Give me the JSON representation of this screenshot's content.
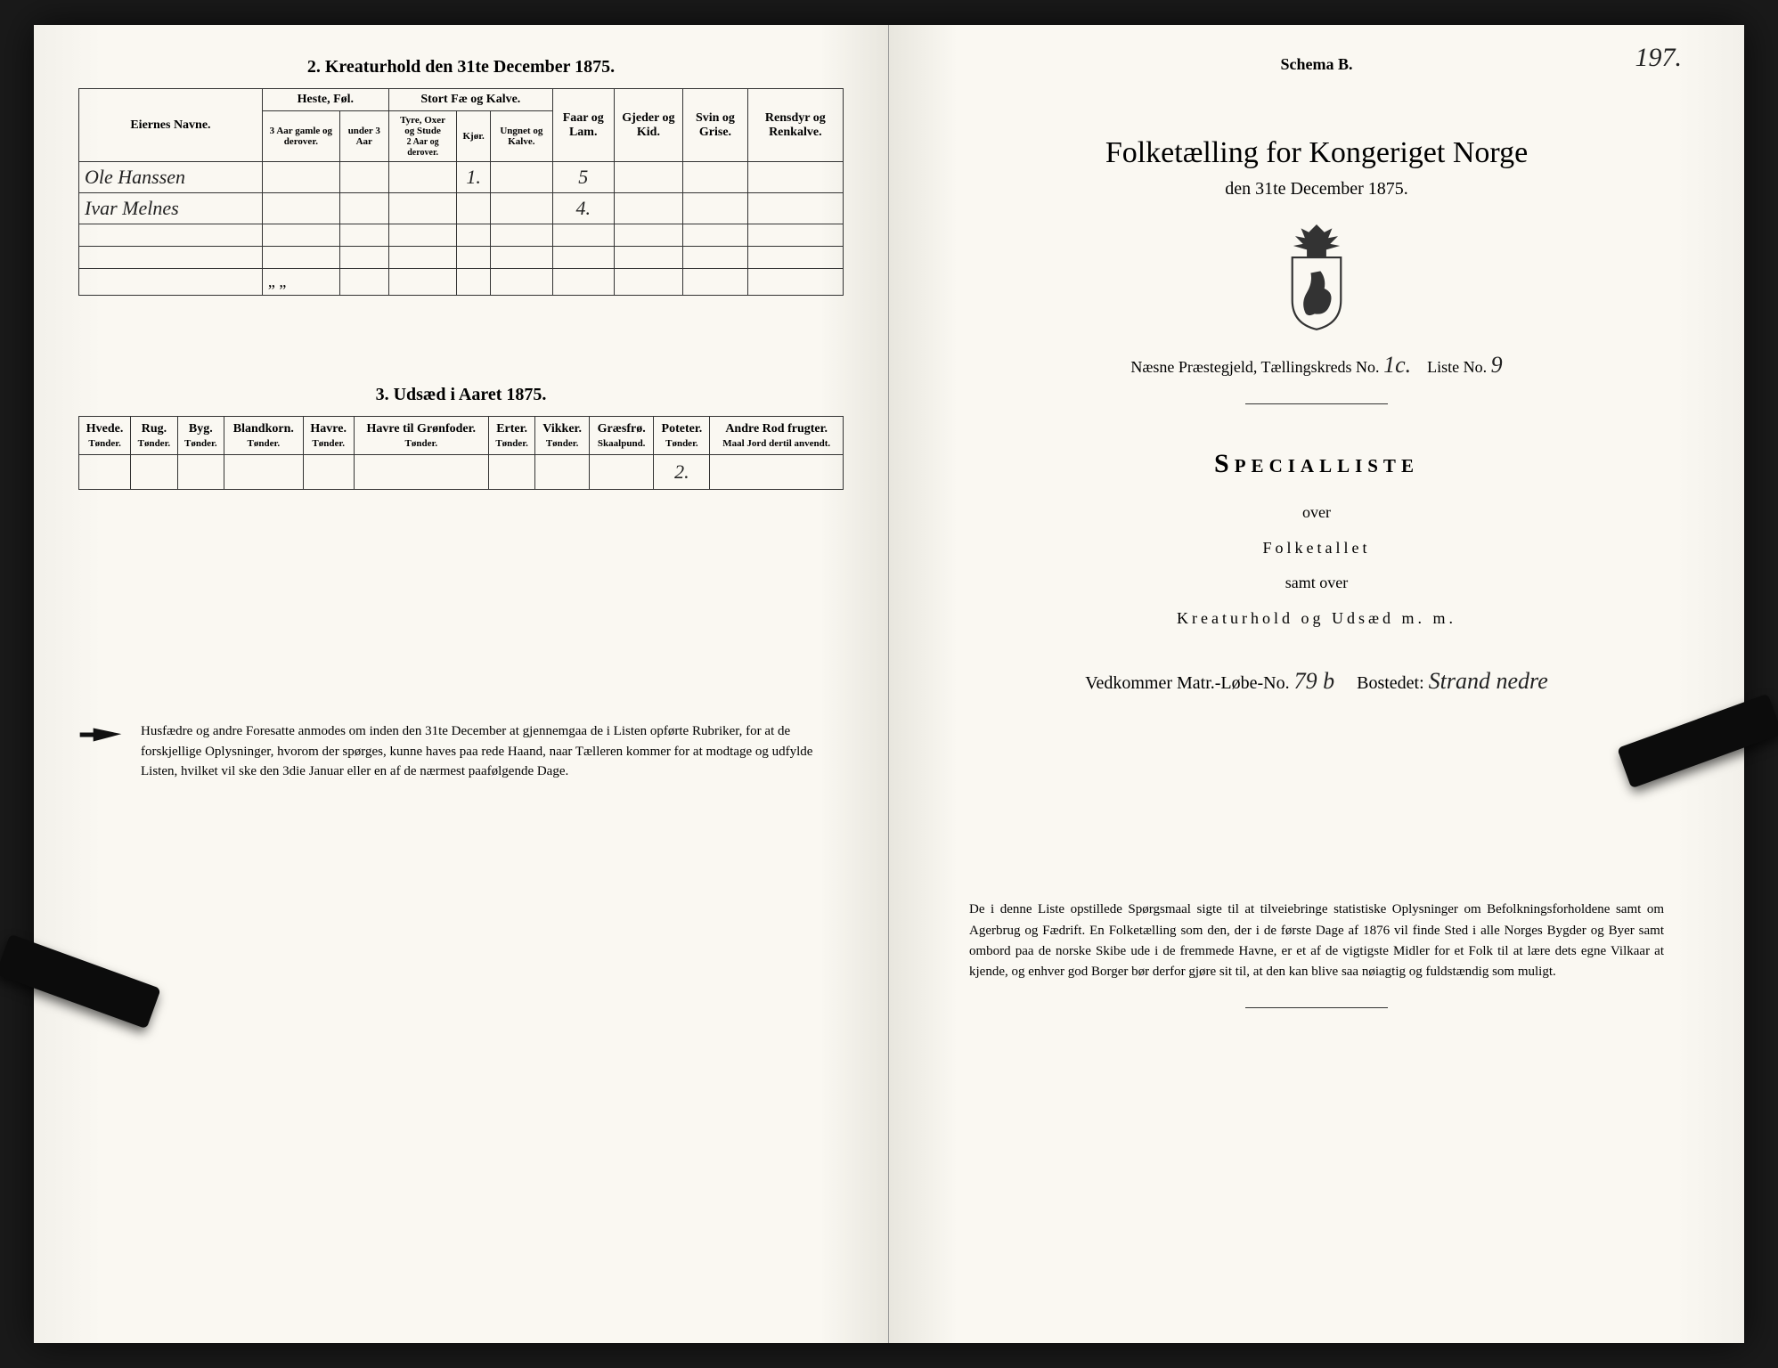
{
  "left": {
    "section2_title": "2.  Kreaturhold den 31te December 1875.",
    "cattle_headers": {
      "owner": "Eiernes Navne.",
      "horses": "Heste, Føl.",
      "horses_sub": [
        "3 Aar gamle og derover.",
        "under 3 Aar"
      ],
      "big": "Stort Fæ og Kalve.",
      "big_sub": [
        "Tyre, Oxer og Stude",
        "2 Aar og derover.",
        "Kjør.",
        "Ungnet og Kalve."
      ],
      "sheep": "Faar og Lam.",
      "goats": "Gjeder og Kid.",
      "pigs": "Svin og Grise.",
      "reindeer": "Rensdyr og Renkalve."
    },
    "cattle_rows": [
      {
        "name": "Ole Hanssen",
        "horses_a": "",
        "horses_b": "",
        "big_a": "",
        "kjor": "1.",
        "ung": "",
        "sheep": "5",
        "goats": "",
        "pigs": "",
        "reindeer": ""
      },
      {
        "name": "Ivar Melnes",
        "horses_a": "",
        "horses_b": "",
        "big_a": "",
        "kjor": "",
        "ung": "",
        "sheep": "4.",
        "goats": "",
        "pigs": "",
        "reindeer": ""
      }
    ],
    "section3_title": "3.  Udsæd i Aaret 1875.",
    "seed_headers": [
      "Hvede.",
      "Rug.",
      "Byg.",
      "Blandkorn.",
      "Havre.",
      "Havre til Grønfoder.",
      "Erter.",
      "Vikker.",
      "Græsfrø.",
      "Poteter.",
      "Andre Rod frugter."
    ],
    "seed_sub": [
      "Tønder.",
      "Tønder.",
      "Tønder.",
      "Tønder.",
      "Tønder.",
      "Tønder.",
      "Tønder.",
      "Tønder.",
      "Skaalpund.",
      "Tønder.",
      "Maal Jord dertil anvendt."
    ],
    "seed_values": [
      "",
      "",
      "",
      "",
      "",
      "",
      "",
      "",
      "",
      "2.",
      ""
    ],
    "footnote": "Husfædre og andre Foresatte anmodes om inden den 31te December at gjennemgaa de i Listen opførte Rubriker, for at de forskjellige Oplysninger, hvorom der spørges, kunne haves paa rede Haand, naar Tælleren kommer for at modtage og udfylde Listen, hvilket vil ske den 3die Januar eller en af de nærmest paafølgende Dage."
  },
  "right": {
    "schema": "Schema B.",
    "page_no": "197.",
    "title": "Folketælling for Kongeriget Norge",
    "date_line": "den 31te December 1875.",
    "parish_label": "Næsne Præstegjeld,  Tællingskreds No.",
    "kreds_no": "1c.",
    "liste_label": "Liste No.",
    "liste_no": "9",
    "special": "Specialliste",
    "over1": "over",
    "over2": "Folketallet",
    "over3": "samt over",
    "over4": "Kreaturhold og Udsæd m. m.",
    "matr_label": "Vedkommer Matr.-Løbe-No.",
    "matr_no": "79 b",
    "bosted_label": "Bostedet:",
    "bosted": "Strand nedre",
    "footnote": "De i denne Liste opstillede Spørgsmaal sigte til at tilveiebringe statistiske Oplysninger om Befolkningsforholdene samt om Agerbrug og Fædrift. En Folketælling som den, der i de første Dage af 1876 vil finde Sted i alle Norges Bygder og Byer samt ombord paa de norske Skibe ude i de fremmede Havne, er et af de vigtigste Midler for et Folk til at lære dets egne Vilkaar at kjende, og enhver god Borger bør derfor gjøre sit til, at den kan blive saa nøiagtig og fuldstændig som muligt."
  },
  "colors": {
    "page_bg": "#faf8f2",
    "ink": "#222222",
    "border": "#333333",
    "dark_bg": "#1a1a1a",
    "clip": "#0c0c0c"
  }
}
